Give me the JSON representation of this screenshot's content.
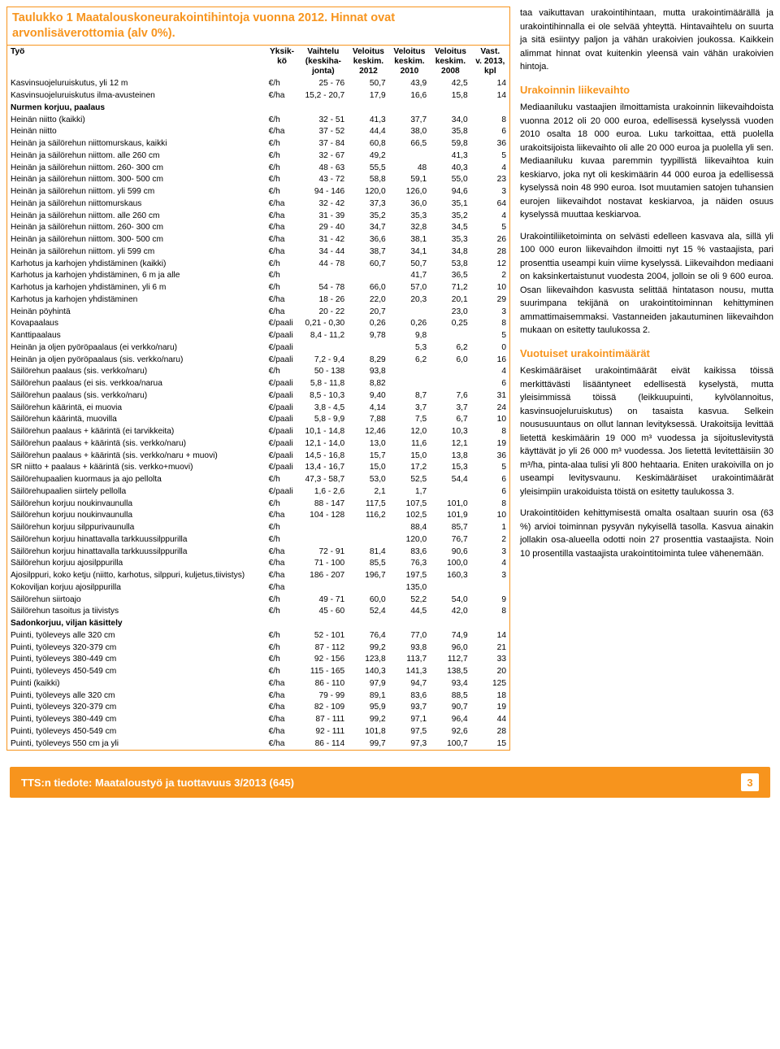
{
  "table": {
    "title": "Taulukko 1 Maatalouskoneurakointihintoja vuonna 2012. Hinnat ovat arvonlisäverottomia (alv 0%).",
    "headers": [
      "Työ",
      "Yksikkö",
      "Vaihtelu (keskihajonta)",
      "Veloitus keskim. 2012",
      "Veloitus keskim. 2010",
      "Veloitus keskim. 2008",
      "Vast. v. 2013, kpl"
    ],
    "rows": [
      [
        "Kasvinsuojeluruiskutus, yli 12 m",
        "€/h",
        "25 - 76",
        "50,7",
        "43,9",
        "42,5",
        "14"
      ],
      [
        "Kasvinsuojeluruiskutus ilma-avusteinen",
        "€/ha",
        "15,2 - 20,7",
        "17,9",
        "16,6",
        "15,8",
        "14"
      ],
      [
        "__SECTION__",
        "Nurmen korjuu, paalaus",
        "",
        "",
        "",
        "",
        "",
        ""
      ],
      [
        "Heinän niitto (kaikki)",
        "€/h",
        "32 - 51",
        "41,3",
        "37,7",
        "34,0",
        "8"
      ],
      [
        "Heinän niitto",
        "€/ha",
        "37 - 52",
        "44,4",
        "38,0",
        "35,8",
        "6"
      ],
      [
        "Heinän ja säilörehun niittomurskaus, kaikki",
        "€/h",
        "37 - 84",
        "60,8",
        "66,5",
        "59,8",
        "36"
      ],
      [
        "Heinän ja säilörehun niittom. alle 260 cm",
        "€/h",
        "32 - 67",
        "49,2",
        "",
        "41,3",
        "5"
      ],
      [
        "Heinän ja säilörehun niittom. 260- 300 cm",
        "€/h",
        "48 - 63",
        "55,5",
        "48",
        "40,3",
        "4"
      ],
      [
        "Heinän ja säilörehun niittom. 300- 500 cm",
        "€/h",
        "43 - 72",
        "58,8",
        "59,1",
        "55,0",
        "23"
      ],
      [
        "Heinän ja säilörehun niittom. yli 599 cm",
        "€/h",
        "94 - 146",
        "120,0",
        "126,0",
        "94,6",
        "3"
      ],
      [
        "Heinän ja säilörehun niittomurskaus",
        "€/ha",
        "32 - 42",
        "37,3",
        "36,0",
        "35,1",
        "64"
      ],
      [
        "Heinän ja säilörehun niittom.  alle 260 cm",
        "€/ha",
        "31 - 39",
        "35,2",
        "35,3",
        "35,2",
        "4"
      ],
      [
        "Heinän ja säilörehun niittom.  260- 300 cm",
        "€/ha",
        "29 - 40",
        "34,7",
        "32,8",
        "34,5",
        "5"
      ],
      [
        "Heinän ja säilörehun niittom. 300- 500 cm",
        "€/ha",
        "31 - 42",
        "36,6",
        "38,1",
        "35,3",
        "26"
      ],
      [
        "Heinän ja säilörehun niittom. yli 599 cm",
        "€/ha",
        "34 - 44",
        "38,7",
        "34,1",
        "34,8",
        "28"
      ],
      [
        "Karhotus ja karhojen yhdistäminen (kaikki)",
        "€/h",
        "44 - 78",
        "60,7",
        "50,7",
        "53,8",
        "12"
      ],
      [
        "Karhotus ja karhojen yhdistäminen, 6 m ja alle",
        "€/h",
        "",
        "",
        "41,7",
        "36,5",
        "2"
      ],
      [
        "Karhotus ja karhojen yhdistäminen, yli 6 m",
        "€/h",
        "54 - 78",
        "66,0",
        "57,0",
        "71,2",
        "10"
      ],
      [
        "Karhotus ja karhojen yhdistäminen",
        "€/ha",
        "18 - 26",
        "22,0",
        "20,3",
        "20,1",
        "29"
      ],
      [
        "Heinän pöyhintä",
        "€/ha",
        "20 - 22",
        "20,7",
        "",
        "23,0",
        "3"
      ],
      [
        "Kovapaalaus",
        "€/paali",
        "0,21 - 0,30",
        "0,26",
        "0,26",
        "0,25",
        "8"
      ],
      [
        "Kanttipaalaus",
        "€/paali",
        "8,4 - 11,2",
        "9,78",
        "9,8",
        "",
        "5"
      ],
      [
        "Heinän ja oljen pyöröpaalaus (ei verkko/naru)",
        "€/paali",
        "",
        "",
        "5,3",
        "6,2",
        "0"
      ],
      [
        "Heinän ja oljen pyöröpaalaus (sis. verkko/naru)",
        "€/paali",
        "7,2 - 9,4",
        "8,29",
        "6,2",
        "6,0",
        "16"
      ],
      [
        "Säilörehun paalaus (sis. verkko/naru)",
        "€/h",
        "50 - 138",
        "93,8",
        "",
        "",
        "4"
      ],
      [
        "Säilörehun paalaus (ei sis. verkkoa/narua",
        "€/paali",
        "5,8 - 11,8",
        "8,82",
        "",
        "",
        "6"
      ],
      [
        "Säilörehun paalaus (sis. verkko/naru)",
        "€/paali",
        "8,5 - 10,3",
        "9,40",
        "8,7",
        "7,6",
        "31"
      ],
      [
        "Säilörehun käärintä, ei muovia",
        "€/paali",
        "3,8 - 4,5",
        "4,14",
        "3,7",
        "3,7",
        "24"
      ],
      [
        "Säilörehun käärintä, muovilla",
        "€/paali",
        "5,8 - 9,9",
        "7,88",
        "7,5",
        "6,7",
        "10"
      ],
      [
        "Säilörehun paalaus + käärintä (ei tarvikkeita)",
        "€/paali",
        "10,1 - 14,8",
        "12,46",
        "12,0",
        "10,3",
        "8"
      ],
      [
        "Säilörehun paalaus + käärintä (sis. verkko/naru)",
        "€/paali",
        "12,1 - 14,0",
        "13,0",
        "11,6",
        "12,1",
        "19"
      ],
      [
        "Säilörehun paalaus + käärintä (sis. verkko/naru + muovi)",
        "€/paali",
        "14,5 - 16,8",
        "15,7",
        "15,0",
        "13,8",
        "36"
      ],
      [
        "SR niitto + paalaus + käärintä (sis. verkko+muovi)",
        "€/paali",
        "13,4 - 16,7",
        "15,0",
        "17,2",
        "15,3",
        "5"
      ],
      [
        "Säilörehupaalien kuormaus ja ajo pellolta",
        "€/h",
        "47,3 - 58,7",
        "53,0",
        "52,5",
        "54,4",
        "6"
      ],
      [
        "Säilörehupaalien siirtely pellolla",
        "€/paali",
        "1,6 - 2,6",
        "2,1",
        "1,7",
        "",
        "6"
      ],
      [
        "Säilörehun korjuu noukinvaunulla",
        "€/h",
        "88 - 147",
        "117,5",
        "107,5",
        "101,0",
        "8"
      ],
      [
        "Säilörehun korjuu noukinvaunulla",
        "€/ha",
        "104 - 128",
        "116,2",
        "102,5",
        "101,9",
        "10"
      ],
      [
        "Säilörehun korjuu silppurivaunulla",
        "€/h",
        "",
        "",
        "88,4",
        "85,7",
        "1"
      ],
      [
        "Säilörehun korjuu hinattavalla tarkkuussilppurilla",
        "€/h",
        "",
        "",
        "120,0",
        "76,7",
        "2"
      ],
      [
        "Säilörehun korjuu hinattavalla tarkkuussilppurilla",
        "€/ha",
        "72 - 91",
        "81,4",
        "83,6",
        "90,6",
        "3"
      ],
      [
        "Säilörehun korjuu ajosilppurilla",
        "€/ha",
        "71 - 100",
        "85,5",
        "76,3",
        "100,0",
        "4"
      ],
      [
        "Ajosilppuri, koko ketju (niitto, karhotus, silppuri, kuljetus,tiivistys)",
        "€/ha",
        "186 - 207",
        "196,7",
        "197,5",
        "160,3",
        "3"
      ],
      [
        "Kokoviljan korjuu ajosilppurilla",
        "€/ha",
        "",
        "",
        "135,0",
        "",
        ""
      ],
      [
        "Säilörehun siirtoajo",
        "€/h",
        "49 - 71",
        "60,0",
        "52,2",
        "54,0",
        "9"
      ],
      [
        "Säilörehun tasoitus ja tiivistys",
        "€/h",
        "45 - 60",
        "52,4",
        "44,5",
        "42,0",
        "8"
      ],
      [
        "__SECTION__",
        "Sadonkorjuu, viljan käsittely",
        "",
        "",
        "",
        "",
        "",
        ""
      ],
      [
        "Puinti, työleveys alle 320 cm",
        "€/h",
        "52 - 101",
        "76,4",
        "77,0",
        "74,9",
        "14"
      ],
      [
        "Puinti, työleveys 320-379 cm",
        "€/h",
        "87 - 112",
        "99,2",
        "93,8",
        "96,0",
        "21"
      ],
      [
        "Puinti, työleveys 380-449 cm",
        "€/h",
        "92 - 156",
        "123,8",
        "113,7",
        "112,7",
        "33"
      ],
      [
        "Puinti, työleveys 450-549 cm",
        "€/h",
        "115 - 165",
        "140,3",
        "141,3",
        "138,5",
        "20"
      ],
      [
        "Puinti (kaikki)",
        "€/ha",
        "86 - 110",
        "97,9",
        "94,7",
        "93,4",
        "125"
      ],
      [
        "Puinti, työleveys alle 320 cm",
        "€/ha",
        "79 - 99",
        "89,1",
        "83,6",
        "88,5",
        "18"
      ],
      [
        "Puinti, työleveys 320-379 cm",
        "€/ha",
        "82 - 109",
        "95,9",
        "93,7",
        "90,7",
        "19"
      ],
      [
        "Puinti, työleveys 380-449 cm",
        "€/ha",
        "87 - 111",
        "99,2",
        "97,1",
        "96,4",
        "44"
      ],
      [
        "Puinti, työleveys 450-549 cm",
        "€/ha",
        "92 - 111",
        "101,8",
        "97,5",
        "92,6",
        "28"
      ],
      [
        "Puinti, työleveys 550 cm ja yli",
        "€/ha",
        "86 - 114",
        "99,7",
        "97,3",
        "100,7",
        "15"
      ]
    ]
  },
  "right": {
    "intro": "taa vaikuttavan urakointihintaan, mutta urakointimäärällä ja urakointihinnalla ei ole selvää yhteyttä. Hintavaihtelu on suurta ja sitä esiintyy paljon ja vähän urakoivien joukossa. Kaikkein alimmat hinnat ovat kuitenkin yleensä vain vähän urakoivien hintoja.",
    "h1": "Urakoinnin liikevaihto",
    "p1": "Mediaaniluku vastaajien ilmoittamista urakoinnin liikevaihdoista vuonna 2012 oli 20 000 euroa, edellisessä kyselyssä vuoden 2010 osalta 18 000 euroa. Luku tarkoittaa, että puolella urakoitsijoista liikevaihto oli alle 20 000 euroa ja puolella yli sen. Mediaaniluku kuvaa paremmin tyypillistä liikevaihtoa kuin keskiarvo, joka nyt oli keskimäärin 44 000 euroa ja edellisessä kyselyssä noin 48 990 euroa. Isot muutamien satojen tuhansien eurojen liikevaihdot nostavat keskiarvoa, ja näiden osuus kyselyssä muuttaa keskiarvoa.",
    "p2": "Urakointiliiketoiminta on selvästi edelleen kasvava ala, sillä yli 100 000 euron liikevaihdon ilmoitti nyt 15 % vastaajista, pari prosenttia useampi kuin viime kyselyssä. Liikevaihdon mediaani on kaksinkertaistunut vuodesta 2004, jolloin se oli 9 600 euroa. Osan liikevaihdon kasvusta selittää hintatason nousu, mutta suurimpana tekijänä on urakointitoiminnan kehittyminen ammattimaisemmaksi. Vastanneiden jakautuminen liikevaihdon mukaan on esitetty taulukossa 2.",
    "h2": "Vuotuiset urakointimäärät",
    "p3": "Keskimääräiset urakointimäärät eivät kaikissa töissä merkittävästi lisääntyneet edellisestä kyselystä, mutta yleisimmissä töissä (leikkuupuinti, kylvölannoitus, kasvinsuojeluruiskutus) on tasaista kasvua. Selkein noususuuntaus on ollut lannan levityksessä. Urakoitsija levittää lietettä keskimäärin 19 000 m³ vuodessa ja sijoituslevitystä käyttävät jo yli 26 000 m³ vuodessa. Jos lietettä levitettäisiin 30 m³/ha, pinta-alaa tulisi yli 800 hehtaaria. Eniten urakoivilla on jo useampi levitysvaunu. Keskimääräiset urakointimäärät yleisimpiin urakoiduista töistä on esitetty taulukossa 3.",
    "p4": "Urakointitöiden kehittymisestä omalta osaltaan suurin osa (63 %) arvioi toiminnan pysyvän nykyisellä tasolla. Kasvua ainakin jollakin osa-alueella odotti noin 27 prosenttia vastaajista. Noin 10 prosentilla vastaajista urakointitoiminta tulee vähenemään."
  },
  "footer": {
    "text": "TTS:n tiedote: Maataloustyö ja tuottavuus 3/2013 (645)",
    "page": "3"
  }
}
